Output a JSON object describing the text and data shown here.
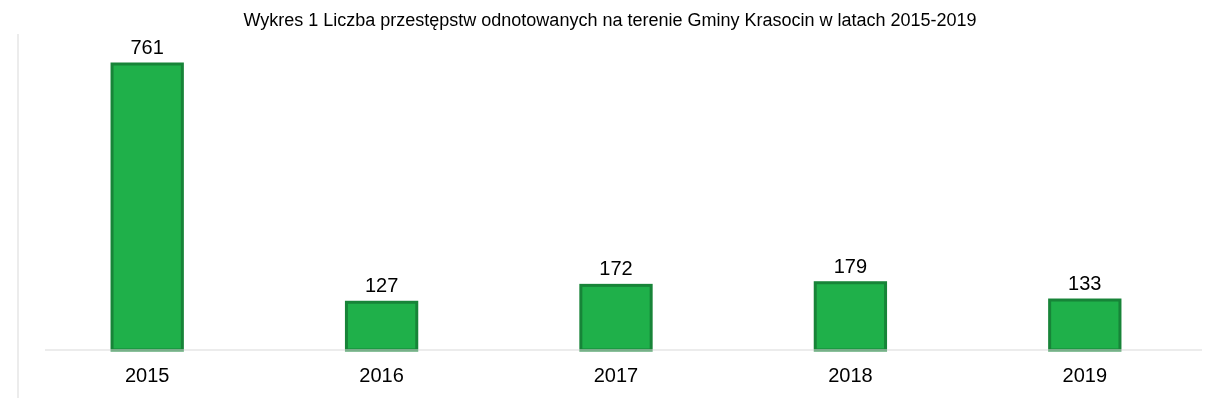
{
  "chart_data": {
    "type": "bar",
    "title": "Wykres 1 Liczba przestępstw odnotowanych na terenie Gminy Krasocin w latach 2015-2019",
    "categories": [
      "2015",
      "2016",
      "2017",
      "2018",
      "2019"
    ],
    "values": [
      761,
      127,
      172,
      179,
      133
    ],
    "color": "#1fb04a",
    "data_labels": true,
    "grid": false
  }
}
